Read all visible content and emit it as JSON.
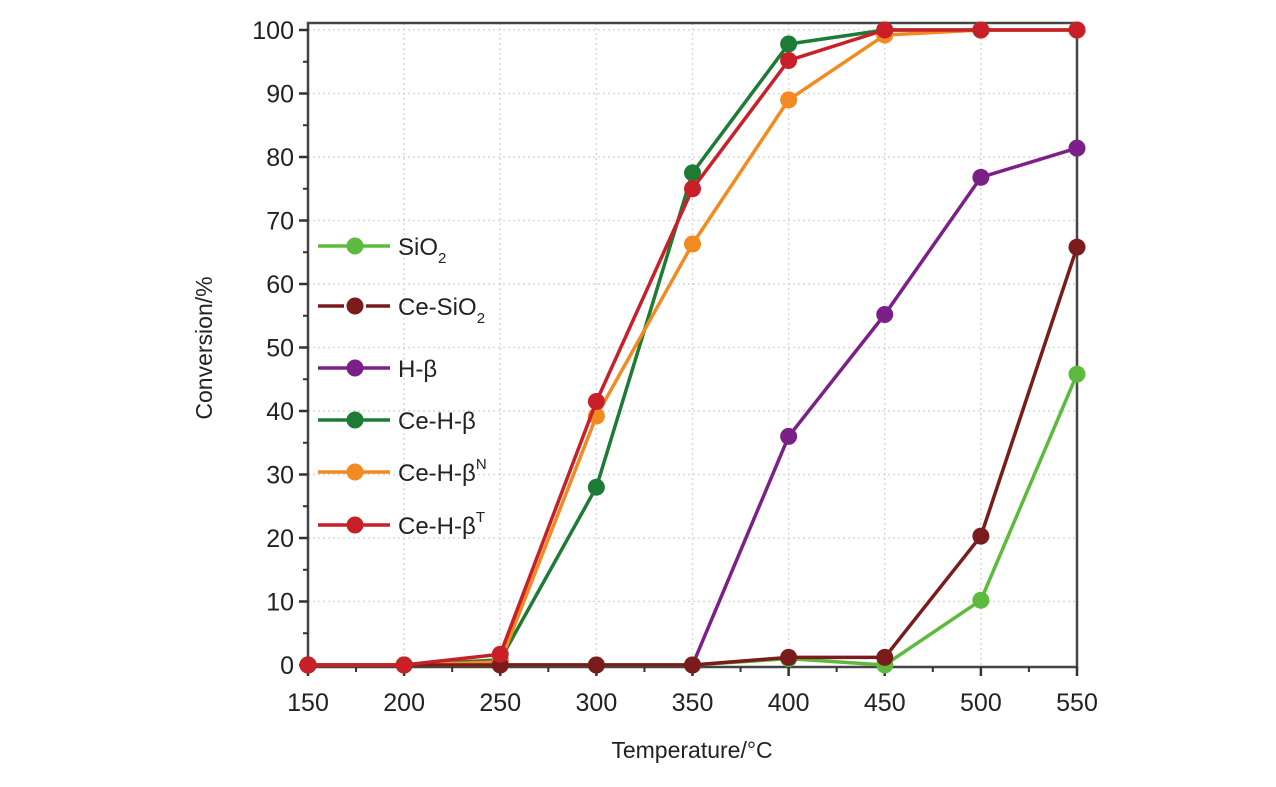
{
  "chart_data": {
    "type": "line",
    "title": "",
    "xlabel": "Temperature/°C",
    "ylabel": "Conversion/%",
    "xlim": [
      150,
      550
    ],
    "ylim": [
      0,
      100
    ],
    "grid": true,
    "legend_position": "left-middle",
    "x": [
      150,
      200,
      250,
      300,
      350,
      400,
      450,
      500,
      550
    ],
    "xticks": [
      "150",
      "200",
      "250",
      "300",
      "350",
      "400",
      "450",
      "500",
      "550"
    ],
    "yticks": [
      "0",
      "10",
      "20",
      "30",
      "40",
      "50",
      "60",
      "70",
      "80",
      "90",
      "100"
    ],
    "series": [
      {
        "name": "SiO2",
        "base": "SiO",
        "sub": "2",
        "sup": "",
        "color": "#5cbb3c",
        "values": [
          0,
          0,
          0,
          0,
          0,
          1,
          0,
          10.2,
          45.8
        ]
      },
      {
        "name": "Ce-SiO2",
        "base": "Ce-SiO",
        "sub": "2",
        "sup": "",
        "color": "#7a1c1c",
        "values": [
          0,
          0,
          0,
          0,
          0,
          1.2,
          1.2,
          20.3,
          65.8
        ]
      },
      {
        "name": "H-β",
        "base": "H-β",
        "sub": "",
        "sup": "",
        "color": "#7b2087",
        "values": [
          0,
          0,
          0,
          0,
          0,
          36,
          55.2,
          76.8,
          81.4
        ]
      },
      {
        "name": "Ce-H-β",
        "base": "Ce-H-β",
        "sub": "",
        "sup": "",
        "color": "#1d7b34",
        "values": [
          0,
          0,
          0.8,
          28,
          77.5,
          97.8,
          100,
          100,
          100
        ]
      },
      {
        "name": "Ce-H-βN",
        "base": "Ce-H-β",
        "sub": "",
        "sup": "N",
        "color": "#f28a22",
        "values": [
          0,
          0,
          0.5,
          39.2,
          66.3,
          89,
          99.2,
          100,
          100
        ]
      },
      {
        "name": "Ce-H-βT",
        "base": "Ce-H-β",
        "sub": "",
        "sup": "T",
        "color": "#c91f28",
        "values": [
          0,
          0,
          1.7,
          41.5,
          75,
          95.2,
          100,
          100,
          100
        ]
      }
    ],
    "draw_order": [
      2,
      0,
      3,
      4,
      1,
      5
    ]
  }
}
